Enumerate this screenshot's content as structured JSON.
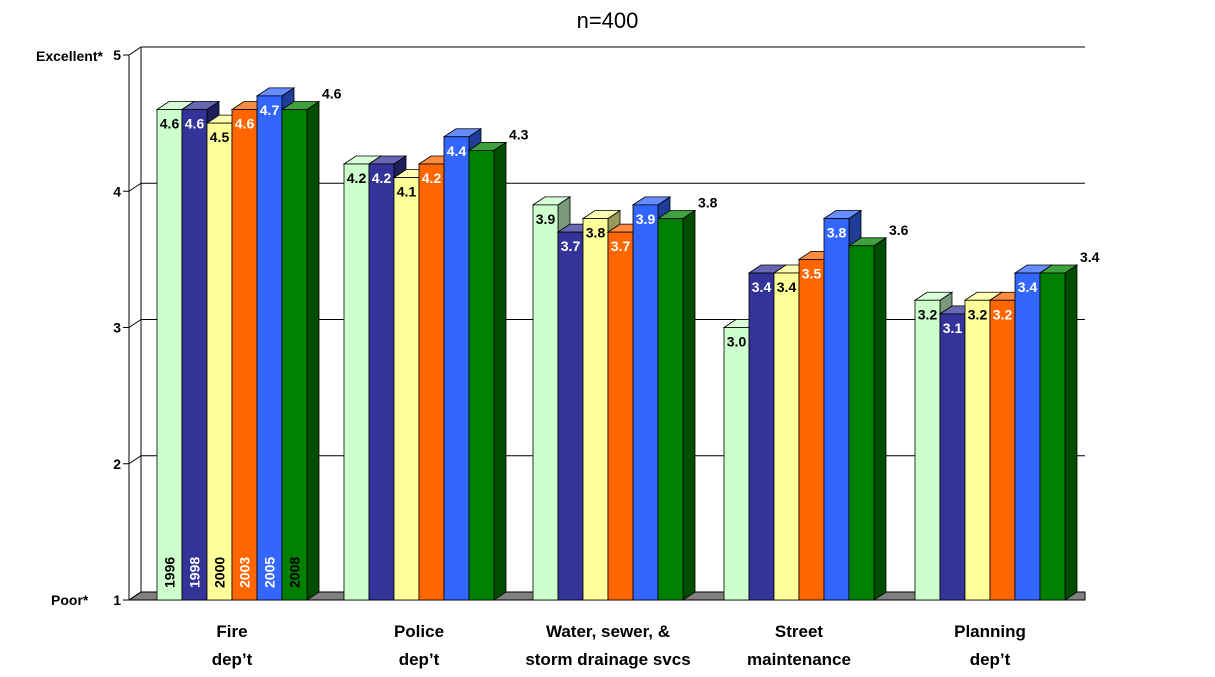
{
  "chart_data": {
    "type": "bar",
    "subtitle": "n=400",
    "categories": [
      "Fire\ndep’t",
      "Police\ndep’t",
      "Water, sewer, &\nstorm drainage svcs",
      "Street\nmaintenance",
      "Planning\ndep’t"
    ],
    "series": [
      {
        "name": "1996",
        "color": "#ccffcc",
        "values": [
          4.6,
          4.2,
          3.9,
          3.0,
          3.2
        ],
        "labels": [
          "4.6",
          "4.2",
          "3.9",
          "3.0",
          "3.2"
        ]
      },
      {
        "name": "1998",
        "color": "#333399",
        "values": [
          4.6,
          4.2,
          3.7,
          3.4,
          3.1
        ],
        "labels": [
          "4.6",
          "4.2",
          "3.7",
          "3.4",
          "3.1"
        ]
      },
      {
        "name": "2000",
        "color": "#ffff99",
        "values": [
          4.5,
          4.1,
          3.8,
          3.4,
          3.2
        ],
        "labels": [
          "4.5",
          "4.1",
          "3.8",
          "3.4",
          "3.2"
        ]
      },
      {
        "name": "2003",
        "color": "#ff6600",
        "values": [
          4.6,
          4.2,
          3.7,
          3.5,
          3.2
        ],
        "labels": [
          "4.6",
          "4.2",
          "3.7",
          "3.5",
          "3.2"
        ]
      },
      {
        "name": "2005",
        "color": "#3366ff",
        "values": [
          4.7,
          4.4,
          3.9,
          3.8,
          3.4
        ],
        "labels": [
          "4.7",
          "4.4",
          "3.9",
          "3.8",
          "3.4"
        ]
      },
      {
        "name": "2008",
        "color": "#008000",
        "values": [
          4.6,
          4.3,
          3.8,
          3.6,
          3.4
        ],
        "labels": [
          "4.6",
          "4.3",
          "3.8",
          "3.6",
          "3.4"
        ]
      }
    ],
    "ylim": [
      1,
      5
    ],
    "yticks": [
      1,
      2,
      3,
      4,
      5
    ],
    "y_top_label": "Excellent*",
    "y_bottom_label": "Poor*",
    "grid": true,
    "legend": "year labels inside first group's bars"
  }
}
